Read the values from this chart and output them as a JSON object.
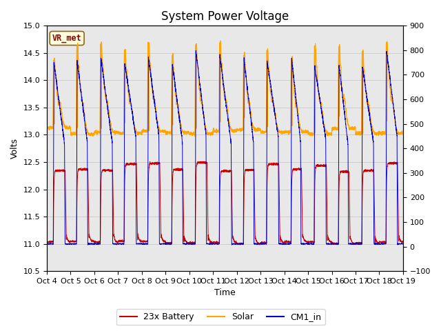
{
  "title": "System Power Voltage",
  "xlabel": "Time",
  "ylabel_left": "Volts",
  "ylim_left": [
    10.5,
    15.0
  ],
  "ylim_right": [
    -100,
    900
  ],
  "yticks_left": [
    10.5,
    11.0,
    11.5,
    12.0,
    12.5,
    13.0,
    13.5,
    14.0,
    14.5,
    15.0
  ],
  "yticks_right": [
    -100,
    0,
    100,
    200,
    300,
    400,
    500,
    600,
    700,
    800,
    900
  ],
  "xtick_labels": [
    "Oct 4",
    "Oct 5",
    "Oct 6",
    "Oct 7",
    "Oct 8",
    "Oct 9",
    "Oct 10",
    "Oct 11",
    "Oct 12",
    "Oct 13",
    "Oct 14",
    "Oct 15",
    "Oct 16",
    "Oct 17",
    "Oct 18",
    "Oct 19"
  ],
  "num_days": 15,
  "annotation_text": "VR_met",
  "annotation_color": "#8B0000",
  "annotation_bg": "#FFFFE0",
  "annotation_border": "#8B6914",
  "battery_color": "#CC0000",
  "solar_color": "#FFA500",
  "cm1_color": "#0000CC",
  "legend_labels": [
    "23x Battery",
    "Solar",
    "CM1_in"
  ],
  "grid_color": "#C8C8C8",
  "bg_color": "#E8E8E8",
  "title_fontsize": 12,
  "axis_fontsize": 9,
  "tick_fontsize": 8
}
